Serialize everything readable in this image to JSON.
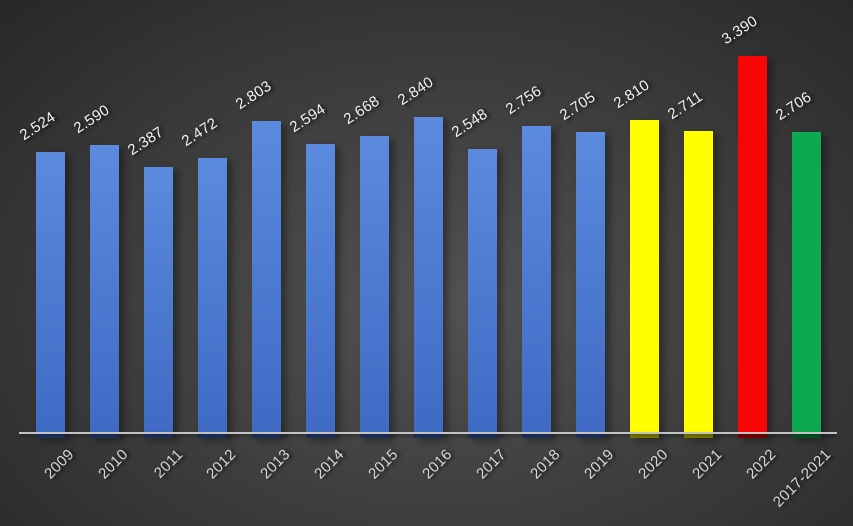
{
  "chart_data": {
    "type": "bar",
    "title": "",
    "xlabel": "",
    "ylabel": "",
    "categories": [
      "2009",
      "2010",
      "2011",
      "2012",
      "2013",
      "2014",
      "2015",
      "2016",
      "2017",
      "2018",
      "2019",
      "2020",
      "2021",
      "2022",
      "2017-2021"
    ],
    "values": [
      2.524,
      2.59,
      2.387,
      2.472,
      2.803,
      2.594,
      2.668,
      2.84,
      2.548,
      2.756,
      2.705,
      2.81,
      2.711,
      3.39,
      2.706
    ],
    "value_labels": [
      "2.524",
      "2.590",
      "2.387",
      "2.472",
      "2.803",
      "2.594",
      "2.668",
      "2.840",
      "2.548",
      "2.756",
      "2.705",
      "2.810",
      "2.711",
      "3.390",
      "2.706"
    ],
    "bar_color_keys": [
      "blue",
      "blue",
      "blue",
      "blue",
      "blue",
      "blue",
      "blue",
      "blue",
      "blue",
      "blue",
      "blue",
      "yellow",
      "yellow",
      "red",
      "green"
    ],
    "colors": {
      "blue_top": "#5b8ade",
      "blue_bottom": "#3f6ac4",
      "yellow": "#ffff00",
      "red": "#fa0505",
      "green": "#0caa50",
      "axis": "#c3c3c3",
      "value_label": "#f2f2f2",
      "tick_label": "#d9d9d9",
      "background_center": "#525252",
      "background_mid": "#3f3f3f",
      "background_edge": "#262626"
    },
    "ylim": [
      0,
      3.6
    ],
    "grid": false,
    "legend": null,
    "x_tick_rotation_deg": -45,
    "value_label_rotation_deg": -33
  }
}
